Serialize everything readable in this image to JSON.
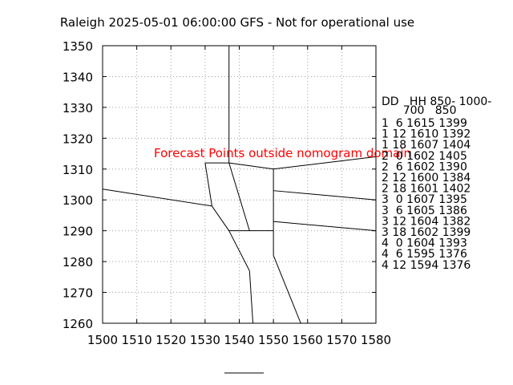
{
  "chart_data": {
    "type": "line",
    "title": "Raleigh 2025-05-01 06:00:00 GFS - Not for operational use",
    "xlabel": "",
    "ylabel": "",
    "xlim": [
      1500,
      1580
    ],
    "ylim": [
      1260,
      1350
    ],
    "xticks": [
      1500,
      1510,
      1520,
      1530,
      1540,
      1550,
      1560,
      1570,
      1580
    ],
    "yticks": [
      1260,
      1270,
      1280,
      1290,
      1300,
      1310,
      1320,
      1330,
      1340,
      1350
    ],
    "grid": true,
    "grid_style": "dotted",
    "annotation": "Forecast Points outside nomogram domain",
    "annotation_color": "#ff0000",
    "line_color": "#000000",
    "legend_header": [
      "DD   HH 850- 1000-",
      "      700   850"
    ],
    "legend_rows": [
      "1  6 1615 1399",
      "1 12 1610 1392",
      "1 18 1607 1404",
      "2  0 1602 1405",
      "2  6 1602 1390",
      "2 12 1600 1384",
      "2 18 1601 1402",
      "3  0 1607 1395",
      "3  6 1605 1386",
      "3 12 1604 1382",
      "3 18 1602 1399",
      "4  0 1604 1393",
      "4  6 1595 1376",
      "4 12 1594 1376"
    ],
    "series": [
      {
        "x": [
          1537,
          1537
        ],
        "y": [
          1350,
          1312
        ]
      },
      {
        "x": [
          1530,
          1537
        ],
        "y": [
          1312,
          1312
        ]
      },
      {
        "x": [
          1537,
          1550
        ],
        "y": [
          1312,
          1310
        ]
      },
      {
        "x": [
          1550,
          1580
        ],
        "y": [
          1310,
          1314
        ]
      },
      {
        "x": [
          1530,
          1532
        ],
        "y": [
          1312,
          1298
        ]
      },
      {
        "x": [
          1500,
          1532
        ],
        "y": [
          1303.5,
          1298
        ]
      },
      {
        "x": [
          1532,
          1537
        ],
        "y": [
          1298,
          1290
        ]
      },
      {
        "x": [
          1537,
          1543
        ],
        "y": [
          1312,
          1290
        ]
      },
      {
        "x": [
          1537,
          1550
        ],
        "y": [
          1290,
          1290
        ]
      },
      {
        "x": [
          1550,
          1550
        ],
        "y": [
          1310,
          1282
        ]
      },
      {
        "x": [
          1550,
          1580
        ],
        "y": [
          1303,
          1300
        ]
      },
      {
        "x": [
          1550,
          1580
        ],
        "y": [
          1293,
          1290
        ]
      },
      {
        "x": [
          1537,
          1543
        ],
        "y": [
          1290,
          1277
        ]
      },
      {
        "x": [
          1543,
          1544
        ],
        "y": [
          1277,
          1260
        ]
      },
      {
        "x": [
          1550,
          1558
        ],
        "y": [
          1282,
          1260
        ]
      }
    ]
  }
}
